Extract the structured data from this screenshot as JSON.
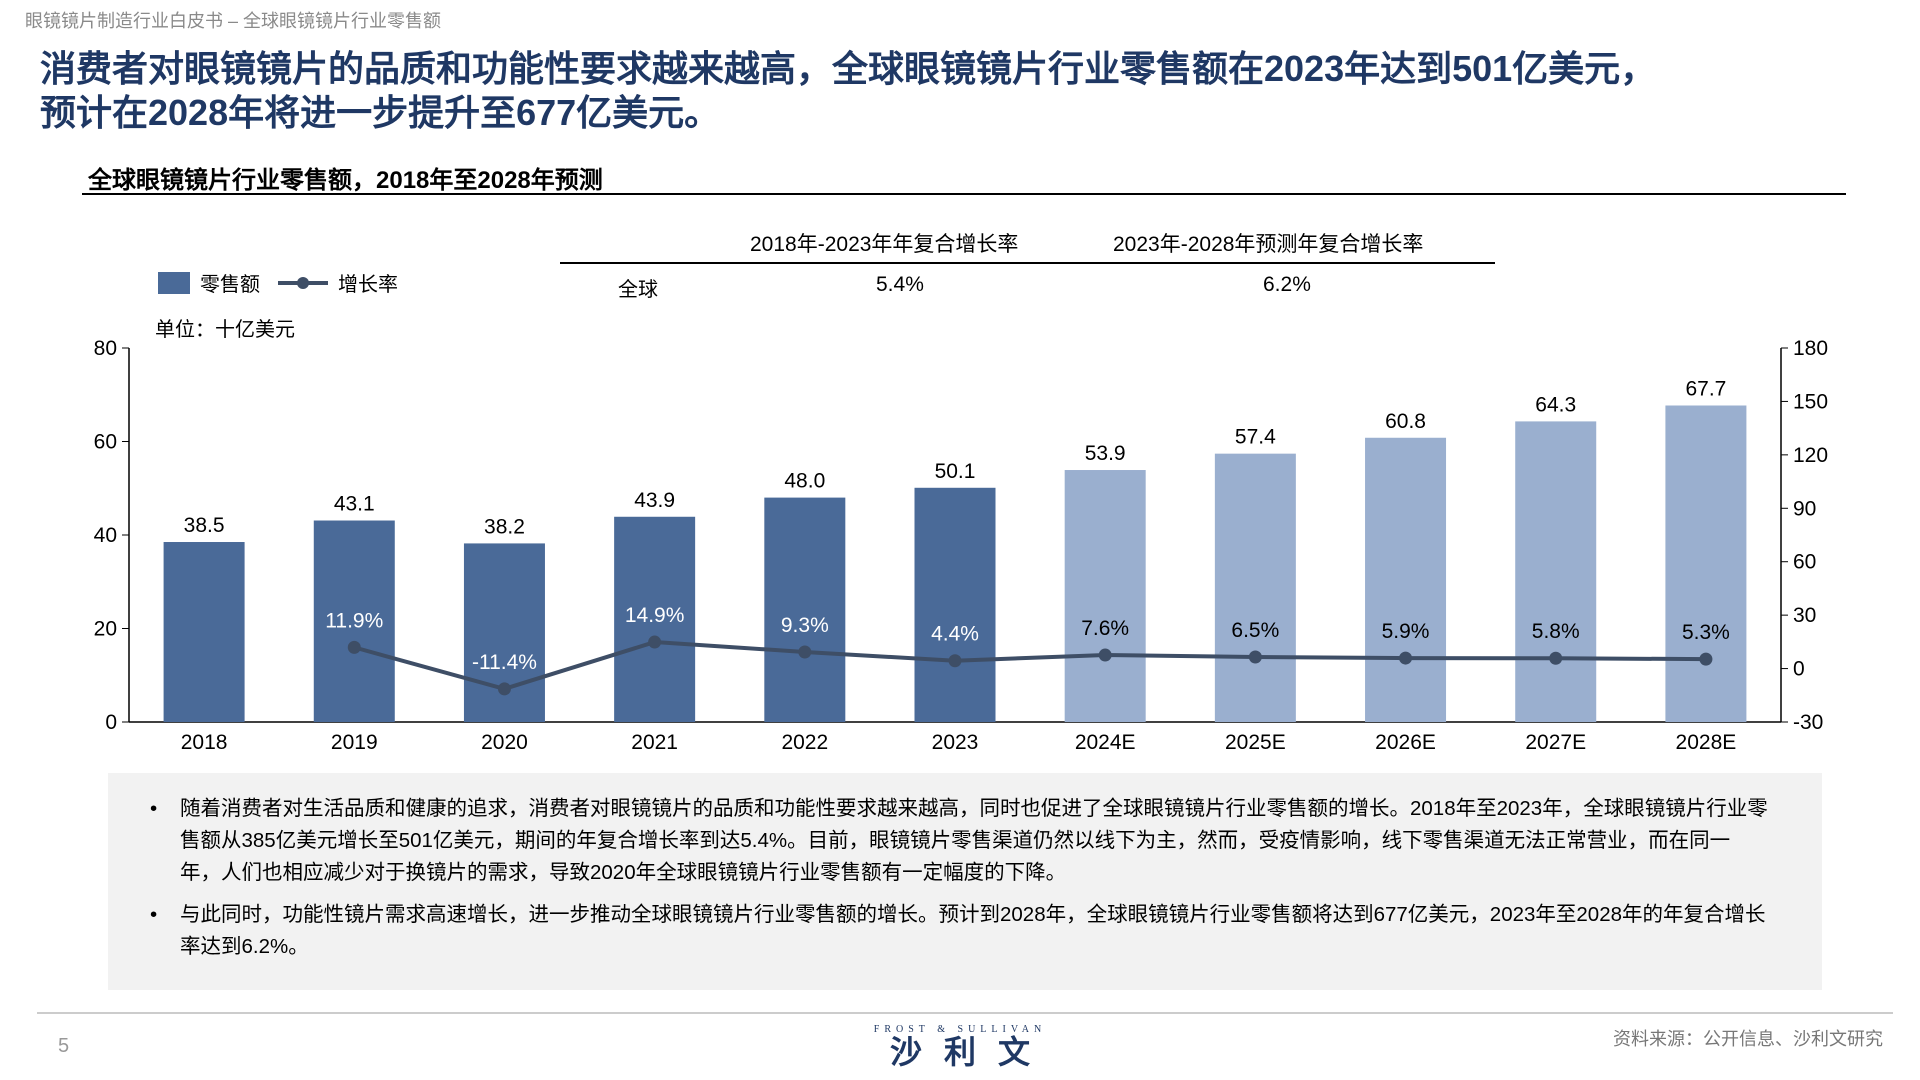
{
  "header": {
    "crumb": "眼镜镜片制造行业白皮书 – 全球眼镜镜片行业零售额",
    "title_line1": "消费者对眼镜镜片的品质和功能性要求越来越高，全球眼镜镜片行业零售额在2023年达到501亿美元，",
    "title_line2": "预计在2028年将进一步提升至677亿美元。"
  },
  "chart_title": "全球眼镜镜片行业零售额，2018年至2028年预测",
  "cagr_table": {
    "headers": [
      "2018年-2023年年复合增长率",
      "2023年-2028年预测年复合增长率"
    ],
    "row_label": "全球",
    "values": [
      "5.4%",
      "6.2%"
    ]
  },
  "legend": {
    "bar": "零售额",
    "line": "增长率"
  },
  "unit": "单位：十亿美元",
  "colors": {
    "actual": "#4a6a98",
    "forecast": "#9aafcf",
    "line": "#3e4e66",
    "title": "#1f3864"
  },
  "chart_data": {
    "type": "bar+line",
    "categories": [
      "2018",
      "2019",
      "2020",
      "2021",
      "2022",
      "2023",
      "2024E",
      "2025E",
      "2026E",
      "2027E",
      "2028E"
    ],
    "series": [
      {
        "name": "零售额",
        "type": "bar",
        "axis": "left",
        "values": [
          38.5,
          43.1,
          38.2,
          43.9,
          48.0,
          50.1,
          53.9,
          57.4,
          60.8,
          64.3,
          67.7
        ],
        "labels": [
          "38.5",
          "43.1",
          "38.2",
          "43.9",
          "48.0",
          "50.1",
          "53.9",
          "57.4",
          "60.8",
          "64.3",
          "67.7"
        ]
      },
      {
        "name": "增长率",
        "type": "line",
        "axis": "right",
        "values": [
          null,
          11.9,
          -11.4,
          14.9,
          9.3,
          4.4,
          7.6,
          6.5,
          5.9,
          5.8,
          5.3
        ],
        "labels": [
          "",
          "11.9%",
          "-11.4%",
          "14.9%",
          "9.3%",
          "4.4%",
          "7.6%",
          "6.5%",
          "5.9%",
          "5.8%",
          "5.3%"
        ]
      }
    ],
    "forecast_from": "2024E",
    "ylim_left": [
      0,
      80
    ],
    "yticks_left": [
      "0",
      "20",
      "40",
      "60",
      "80"
    ],
    "ylim_right": [
      -30,
      180
    ],
    "yticks_right": [
      "-30",
      "0",
      "30",
      "60",
      "90",
      "120",
      "150",
      "180"
    ],
    "grid": false,
    "legend_position": "top-left"
  },
  "notes": [
    "随着消费者对生活品质和健康的追求，消费者对眼镜镜片的品质和功能性要求越来越高，同时也促进了全球眼镜镜片行业零售额的增长。2018年至2023年，全球眼镜镜片行业零售额从385亿美元增长至501亿美元，期间的年复合增长率到达5.4%。目前，眼镜镜片零售渠道仍然以线下为主，然而，受疫情影响，线下零售渠道无法正常营业，而在同一年，人们也相应减少对于换镜片的需求，导致2020年全球眼镜镜片行业零售额有一定幅度的下降。",
    "与此同时，功能性镜片需求高速增长，进一步推动全球眼镜镜片行业零售额的增长。预计到2028年，全球眼镜镜片行业零售额将达到677亿美元，2023年至2028年的年复合增长率达到6.2%。"
  ],
  "footer": {
    "page": "5",
    "logo_en": "FROST & SULLIVAN",
    "logo_cn": "沙利文",
    "source": "资料来源：公开信息、沙利文研究"
  }
}
